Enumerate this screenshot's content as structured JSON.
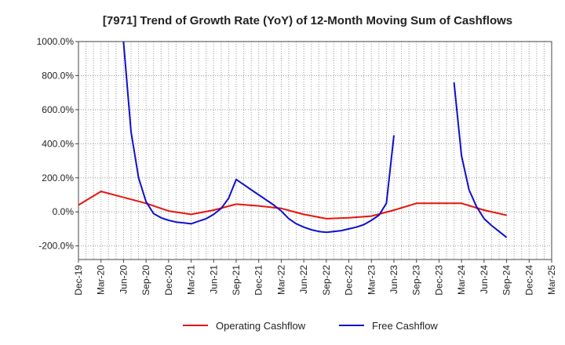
{
  "chart_data": {
    "type": "line",
    "title": "[7971]  Trend of Growth Rate (YoY) of 12-Month Moving Sum of Cashflows",
    "xlabel": "",
    "ylabel": "",
    "ylim": [
      -280,
      1000
    ],
    "y_ticks": [
      1000,
      800,
      600,
      400,
      200,
      0,
      -200
    ],
    "y_tick_labels": [
      "1000.0%",
      "800.0%",
      "600.0%",
      "400.0%",
      "200.0%",
      "0.0%",
      "-200.0%"
    ],
    "x_tick_labels": [
      "Dec-19",
      "Mar-20",
      "Jun-20",
      "Sep-20",
      "Dec-20",
      "Mar-21",
      "Jun-21",
      "Sep-21",
      "Dec-21",
      "Mar-22",
      "Jun-22",
      "Sep-22",
      "Dec-22",
      "Mar-23",
      "Jun-23",
      "Sep-23",
      "Dec-23",
      "Mar-24",
      "Jun-24",
      "Sep-24",
      "Dec-24",
      "Mar-25"
    ],
    "x_months": [
      "2019-12",
      "2020-01",
      "2020-02",
      "2020-03",
      "2020-04",
      "2020-05",
      "2020-06",
      "2020-07",
      "2020-08",
      "2020-09",
      "2020-10",
      "2020-11",
      "2020-12",
      "2021-01",
      "2021-02",
      "2021-03",
      "2021-04",
      "2021-05",
      "2021-06",
      "2021-07",
      "2021-08",
      "2021-09",
      "2021-10",
      "2021-11",
      "2021-12",
      "2022-01",
      "2022-02",
      "2022-03",
      "2022-04",
      "2022-05",
      "2022-06",
      "2022-07",
      "2022-08",
      "2022-09",
      "2022-10",
      "2022-11",
      "2022-12",
      "2023-01",
      "2023-02",
      "2023-03",
      "2023-04",
      "2023-05",
      "2023-06",
      "2023-07",
      "2023-08",
      "2023-09",
      "2023-10",
      "2023-11",
      "2023-12",
      "2024-01",
      "2024-02",
      "2024-03",
      "2024-04",
      "2024-05",
      "2024-06",
      "2024-07",
      "2024-08",
      "2024-09",
      "2024-10",
      "2024-11",
      "2024-12",
      "2025-01",
      "2025-02",
      "2025-03"
    ],
    "grid": true,
    "legend_position": "bottom",
    "series": [
      {
        "name": "Operating Cashflow",
        "color": "#e8140c",
        "points": [
          [
            "2019-12",
            40
          ],
          [
            "2020-03",
            120
          ],
          [
            "2020-06",
            85
          ],
          [
            "2020-09",
            50
          ],
          [
            "2020-12",
            5
          ],
          [
            "2021-03",
            -15
          ],
          [
            "2021-06",
            10
          ],
          [
            "2021-09",
            45
          ],
          [
            "2021-12",
            35
          ],
          [
            "2022-03",
            20
          ],
          [
            "2022-06",
            -15
          ],
          [
            "2022-09",
            -40
          ],
          [
            "2022-12",
            -35
          ],
          [
            "2023-03",
            -25
          ],
          [
            "2023-06",
            10
          ],
          [
            "2023-09",
            50
          ],
          [
            "2023-12",
            50
          ],
          [
            "2024-03",
            50
          ],
          [
            "2024-06",
            10
          ],
          [
            "2024-09",
            -20
          ]
        ]
      },
      {
        "name": "Free Cashflow",
        "color": "#1010cc",
        "points": [
          [
            "2020-06",
            1000
          ],
          [
            "2020-07",
            470
          ],
          [
            "2020-08",
            200
          ],
          [
            "2020-09",
            60
          ],
          [
            "2020-10",
            -10
          ],
          [
            "2020-11",
            -35
          ],
          [
            "2020-12",
            -50
          ],
          [
            "2021-01",
            -60
          ],
          [
            "2021-02",
            -65
          ],
          [
            "2021-03",
            -70
          ],
          [
            "2021-04",
            -55
          ],
          [
            "2021-05",
            -40
          ],
          [
            "2021-06",
            -15
          ],
          [
            "2021-07",
            20
          ],
          [
            "2021-08",
            80
          ],
          [
            "2021-09",
            190
          ],
          [
            "2021-10",
            160
          ],
          [
            "2021-11",
            130
          ],
          [
            "2021-12",
            100
          ],
          [
            "2022-01",
            70
          ],
          [
            "2022-02",
            40
          ],
          [
            "2022-03",
            5
          ],
          [
            "2022-04",
            -40
          ],
          [
            "2022-05",
            -70
          ],
          [
            "2022-06",
            -90
          ],
          [
            "2022-07",
            -105
          ],
          [
            "2022-08",
            -115
          ],
          [
            "2022-09",
            -120
          ],
          [
            "2022-10",
            -115
          ],
          [
            "2022-11",
            -110
          ],
          [
            "2022-12",
            -100
          ],
          [
            "2023-01",
            -90
          ],
          [
            "2023-02",
            -75
          ],
          [
            "2023-03",
            -50
          ],
          [
            "2023-04",
            -20
          ],
          [
            "2023-05",
            50
          ],
          [
            "2023-06",
            450
          ],
          null,
          [
            "2024-02",
            760
          ],
          [
            "2024-03",
            330
          ],
          [
            "2024-04",
            130
          ],
          [
            "2024-05",
            30
          ],
          [
            "2024-06",
            -40
          ],
          [
            "2024-07",
            -80
          ],
          [
            "2024-08",
            -115
          ],
          [
            "2024-09",
            -150
          ]
        ]
      }
    ]
  }
}
